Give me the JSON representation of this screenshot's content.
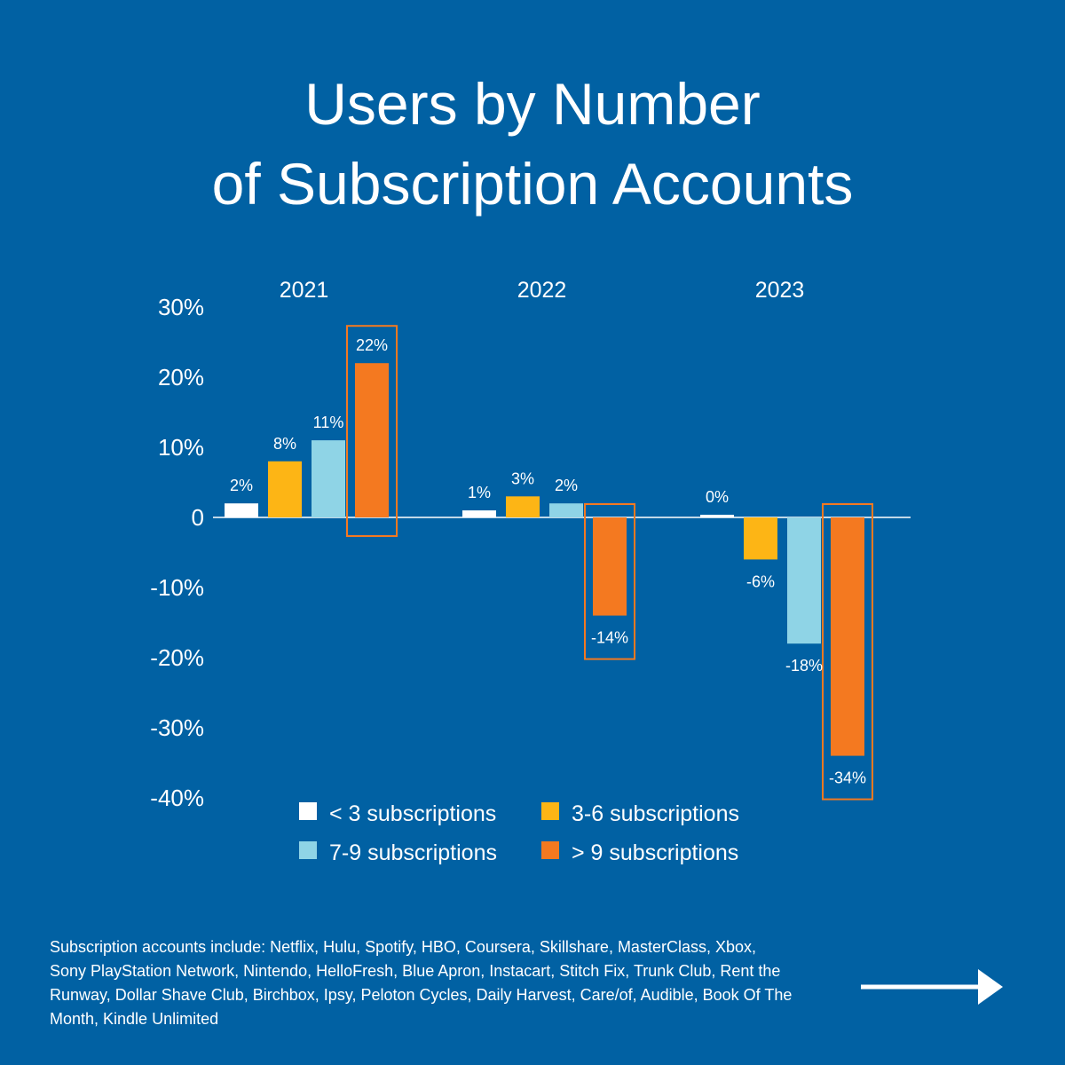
{
  "title_line1": "Users by Number",
  "title_line2": "of Subscription Accounts",
  "chart_data": {
    "type": "bar",
    "title": "Users by Number of Subscription Accounts",
    "categories": [
      "2021",
      "2022",
      "2023"
    ],
    "series": [
      {
        "name": "< 3 subscriptions",
        "values": [
          2,
          1,
          0
        ],
        "labels": [
          "2%",
          "1%",
          "0%"
        ],
        "color": "#ffffff"
      },
      {
        "name": "3-6 subscriptions",
        "values": [
          8,
          3,
          -6
        ],
        "labels": [
          "8%",
          "3%",
          "-6%"
        ],
        "color": "#fdb515"
      },
      {
        "name": "7-9 subscriptions",
        "values": [
          11,
          2,
          -18
        ],
        "labels": [
          "11%",
          "2%",
          "-18%"
        ],
        "color": "#8fd4e6"
      },
      {
        "name": ">  9 subscriptions",
        "values": [
          22,
          -14,
          -34
        ],
        "labels": [
          "22%",
          "-14%",
          "-34%"
        ],
        "color": "#f47920"
      }
    ],
    "highlight_series": ">  9 subscriptions",
    "highlight_color": "#f47920",
    "yticks": [
      30,
      20,
      10,
      0,
      -10,
      -20,
      -30,
      -40
    ],
    "ytick_labels": [
      "30%",
      "20%",
      "10%",
      "0",
      "-10%",
      "-20%",
      "-30%",
      "-40%"
    ],
    "ylim": [
      -40,
      30
    ],
    "xlabel": "",
    "ylabel": "",
    "legend_position": "bottom",
    "grid": false
  },
  "footnote": "Subscription accounts include: Netflix, Hulu, Spotify, HBO, Coursera, Skillshare, MasterClass, Xbox, Sony PlayStation Network, Nintendo, HelloFresh, Blue Apron, Instacart, Stitch Fix, Trunk Club, Rent the Runway, Dollar Shave Club, Birchbox, Ipsy, Peloton Cycles, Daily Harvest, Care/of, Audible, Book Of The Month, Kindle Unlimited",
  "next_icon": "arrow-right-icon",
  "colors": {
    "background": "#0161a3",
    "text": "#ffffff"
  }
}
